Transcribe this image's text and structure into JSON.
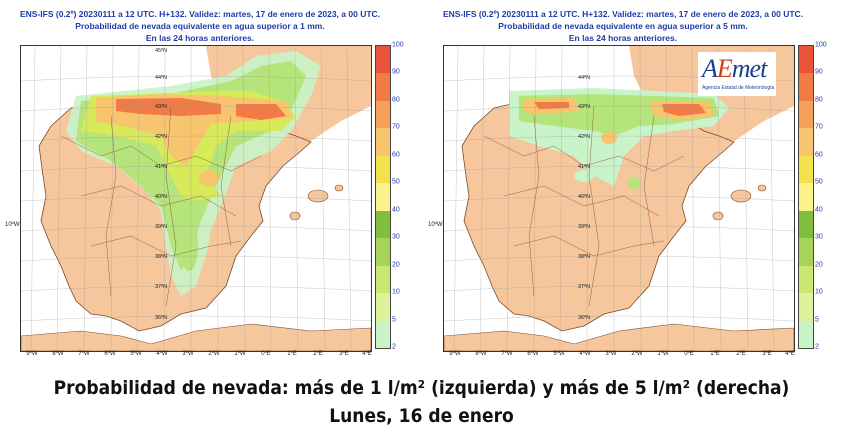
{
  "panels": [
    {
      "id": "left",
      "header": [
        "ENS-IFS (0.2º) 20230111 a 12 UTC. H+132. Validez: martes, 17 de enero de 2023, a 00 UTC.",
        "Probabilidad de nevada equivalente en agua superior a 1 mm.",
        "En las 24 horas anteriores."
      ]
    },
    {
      "id": "right",
      "header": [
        "ENS-IFS (0.2º) 20230111 a 12 UTC. H+132. Validez: martes, 17 de enero de 2023, a 00 UTC.",
        "Probabilidad de nevada equivalente en agua superior a 5 mm.",
        "En las 24 horas anteriores."
      ]
    }
  ],
  "lat_labels": [
    "45ºN",
    "44ºN",
    "43ºN",
    "42ºN",
    "41ºN",
    "40ºN",
    "39ºN",
    "38ºN",
    "37ºN",
    "36ºN"
  ],
  "lon_labels": [
    "9ºW",
    "8ºW",
    "7ºW",
    "6ºW",
    "5ºW",
    "4ºW",
    "3ºW",
    "2ºW",
    "1ºW",
    "0ºE",
    "1ºE",
    "2ºE",
    "3ºE",
    "4ºE"
  ],
  "side_label": "10ºW",
  "colorbar": {
    "ticks": [
      "100",
      "90",
      "80",
      "70",
      "60",
      "50",
      "40",
      "30",
      "20",
      "10",
      "5",
      "2"
    ],
    "colors": [
      "#e8533a",
      "#f27a45",
      "#f6a15a",
      "#f8c46e",
      "#f3e24e",
      "#fbf38a",
      "#7fbf3c",
      "#a6d45a",
      "#c8e870",
      "#ddf29a",
      "#c9f3c9"
    ]
  },
  "logo": {
    "text_a": "A",
    "text_e": "E",
    "text_rest": "met",
    "subtitle": "Agencia Estatal de Meteorología"
  },
  "caption": {
    "line1": "Probabilidad de nevada: más de 1 l/m² (izquierda) y más de 5 l/m² (derecha)",
    "line2": "Lunes, 16 de enero"
  }
}
